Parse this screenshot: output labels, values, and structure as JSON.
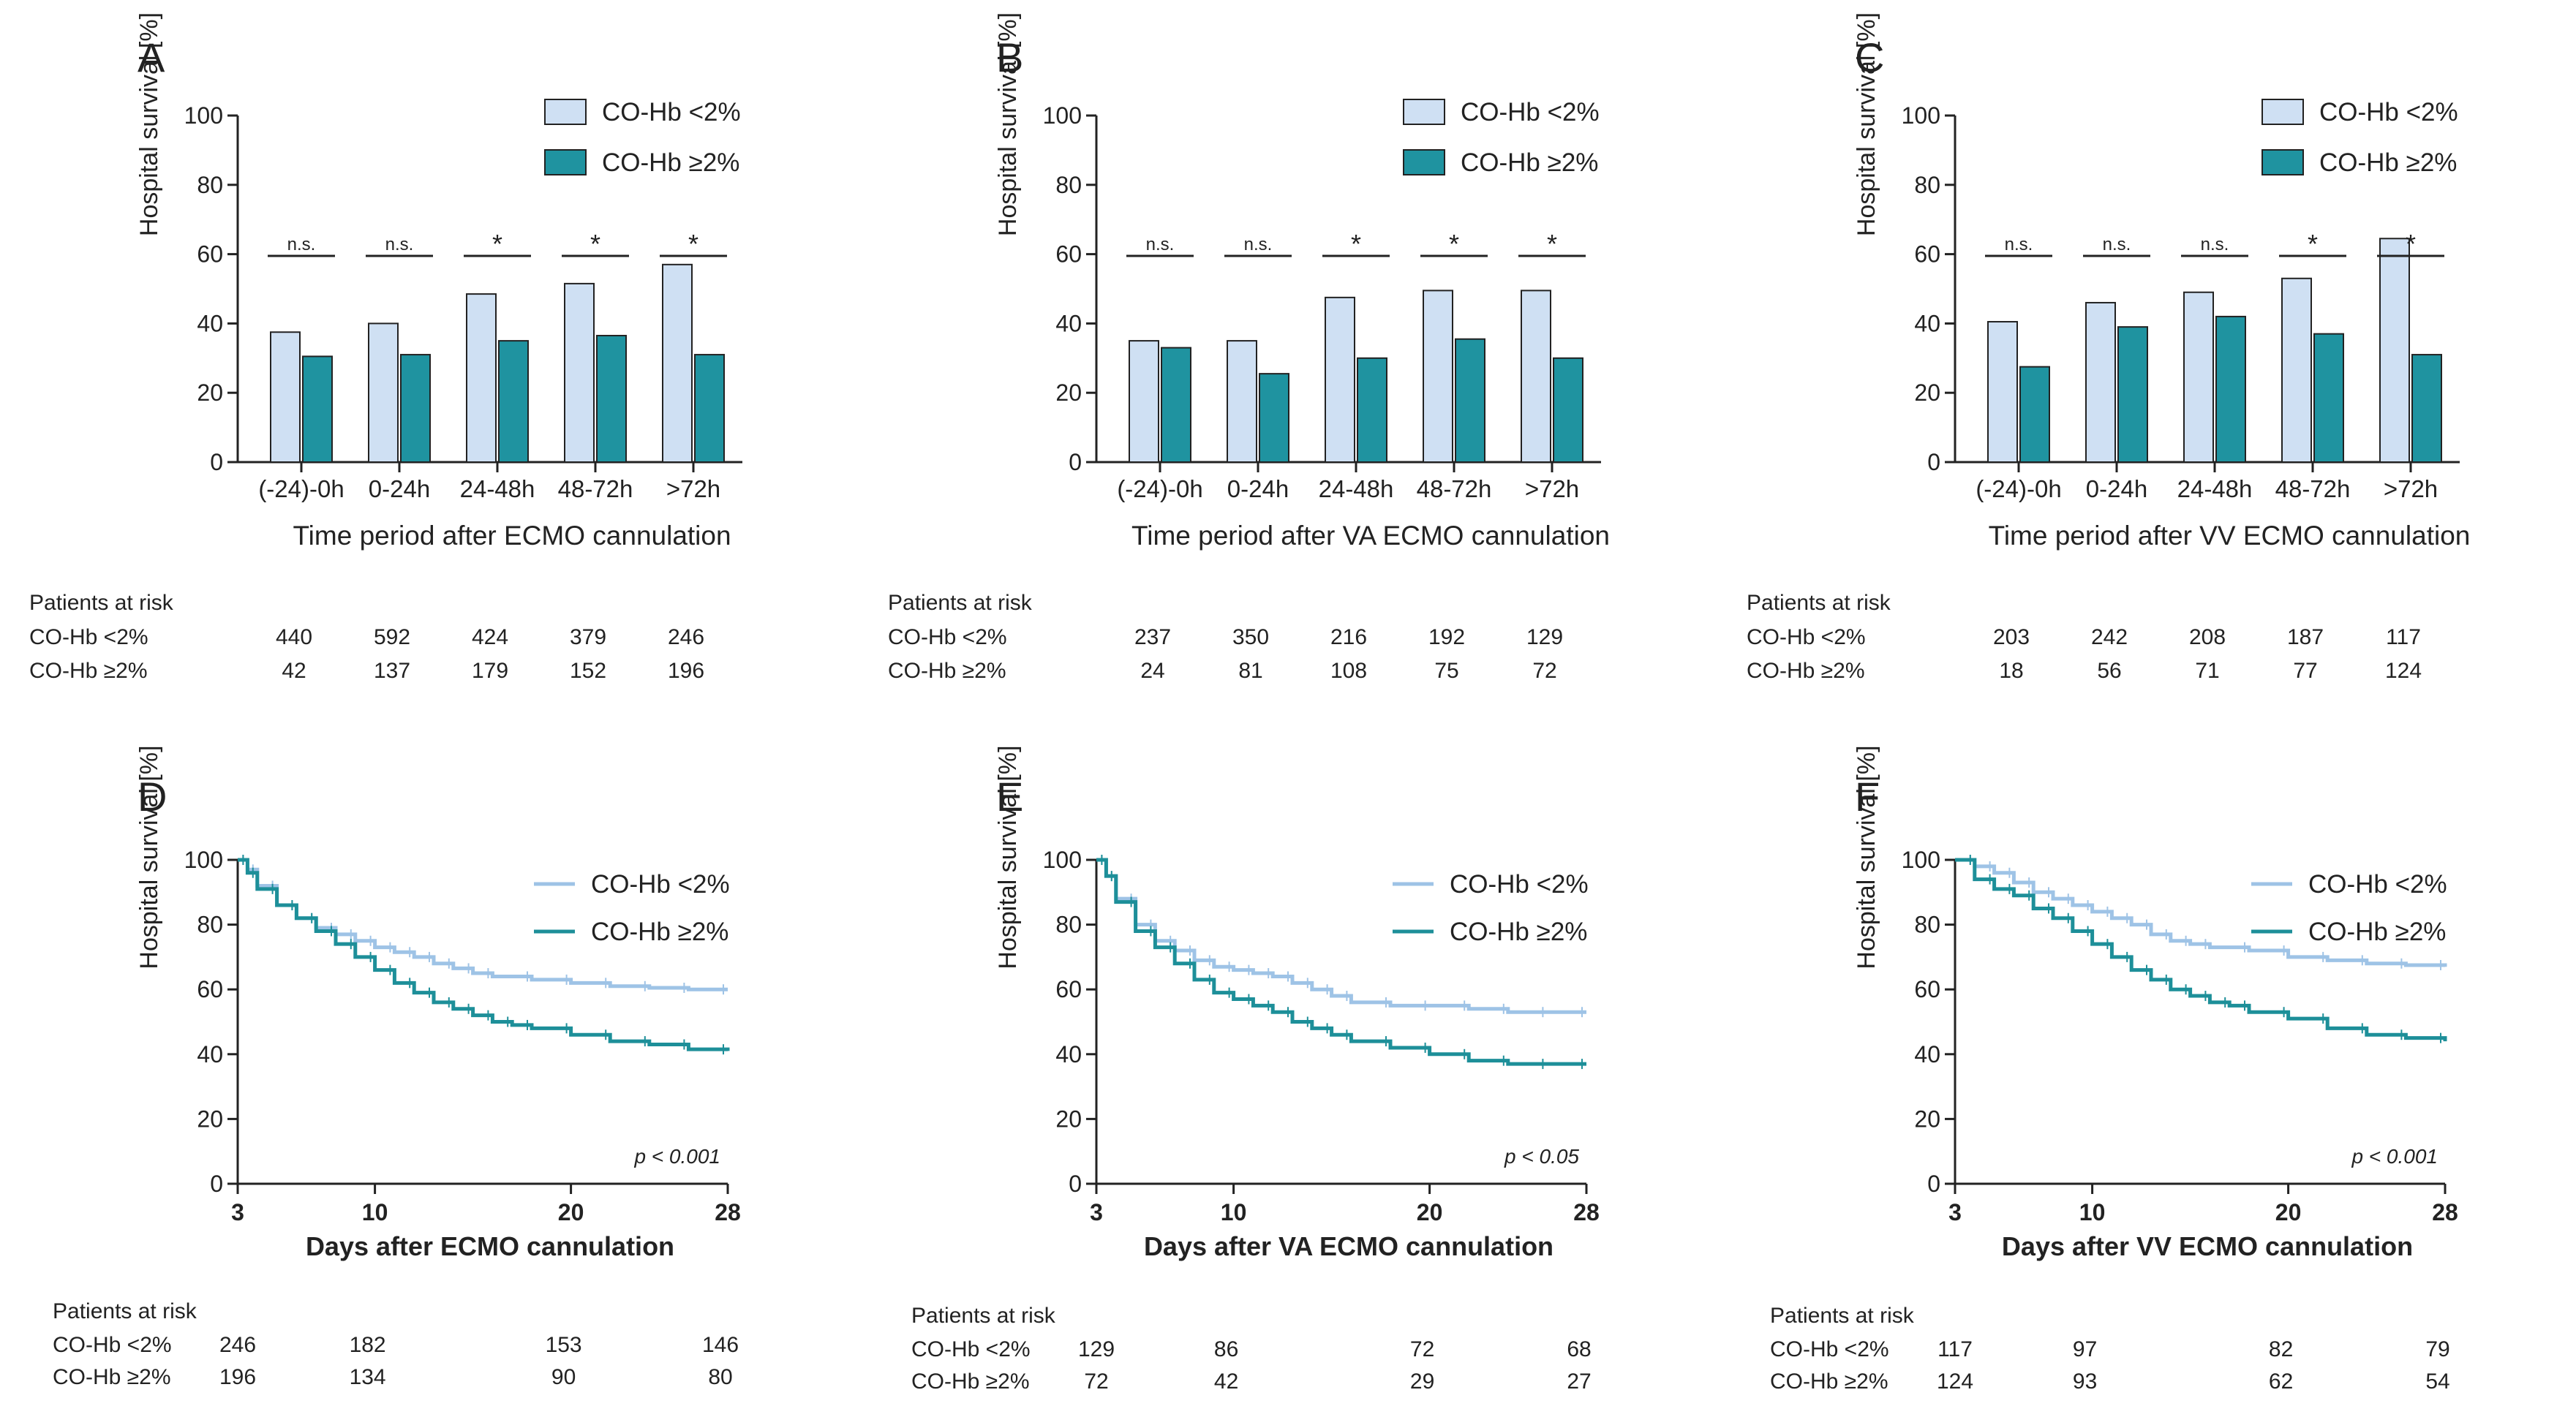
{
  "colors": {
    "light": "#cfe0f3",
    "dark": "#1f93a0",
    "km_light": "#9ec3e6",
    "km_dark": "#1d8f99",
    "axis": "#222222"
  },
  "legend_labels": {
    "low": "CO-Hb <2%",
    "high": "CO-Hb ≥2%"
  },
  "risk_header": "Patients at risk",
  "chart_data": [
    {
      "panel": "A",
      "type": "bar",
      "ylabel": "Hospital survival [%]",
      "xlabel": "Time period after ECMO cannulation",
      "ylim": [
        0,
        100
      ],
      "yticks": [
        "0",
        "20",
        "40",
        "60",
        "80",
        "100"
      ],
      "categories": [
        "(-24)-0h",
        "0-24h",
        "24-48h",
        "48-72h",
        ">72h"
      ],
      "series": [
        {
          "name": "CO-Hb <2%",
          "values": [
            37.5,
            40,
            48.5,
            51.5,
            57
          ]
        },
        {
          "name": "CO-Hb ≥2%",
          "values": [
            30.5,
            31,
            35,
            36.5,
            31
          ]
        }
      ],
      "significance": [
        "n.s.",
        "n.s.",
        "*",
        "*",
        "*"
      ],
      "at_risk": {
        "rows": [
          {
            "label": "CO-Hb <2%",
            "values": [
              "440",
              "592",
              "424",
              "379",
              "246"
            ]
          },
          {
            "label": "CO-Hb ≥2%",
            "values": [
              "42",
              "137",
              "179",
              "152",
              "196"
            ]
          }
        ]
      }
    },
    {
      "panel": "B",
      "type": "bar",
      "ylabel": "Hospital survival [%]",
      "xlabel": "Time period after  VA ECMO cannulation",
      "ylim": [
        0,
        100
      ],
      "yticks": [
        "0",
        "20",
        "40",
        "60",
        "80",
        "100"
      ],
      "categories": [
        "(-24)-0h",
        "0-24h",
        "24-48h",
        "48-72h",
        ">72h"
      ],
      "series": [
        {
          "name": "CO-Hb <2%",
          "values": [
            35,
            35,
            47.5,
            49.5,
            49.5
          ]
        },
        {
          "name": "CO-Hb ≥2%",
          "values": [
            33,
            25.5,
            30,
            35.5,
            30
          ]
        }
      ],
      "significance": [
        "n.s.",
        "n.s.",
        "*",
        "*",
        "*"
      ],
      "at_risk": {
        "rows": [
          {
            "label": "CO-Hb <2%",
            "values": [
              "237",
              "350",
              "216",
              "192",
              "129"
            ]
          },
          {
            "label": "CO-Hb ≥2%",
            "values": [
              "24",
              "81",
              "108",
              "75",
              "72"
            ]
          }
        ]
      }
    },
    {
      "panel": "C",
      "type": "bar",
      "ylabel": "Hospital survival [%]",
      "xlabel": "Time period after VV ECMO cannulation",
      "ylim": [
        0,
        100
      ],
      "yticks": [
        "0",
        "20",
        "40",
        "60",
        "80",
        "100"
      ],
      "categories": [
        "(-24)-0h",
        "0-24h",
        "24-48h",
        "48-72h",
        ">72h"
      ],
      "series": [
        {
          "name": "CO-Hb <2%",
          "values": [
            40.5,
            46,
            49,
            53,
            64.5
          ]
        },
        {
          "name": "CO-Hb ≥2%",
          "values": [
            27.5,
            39,
            42,
            37,
            31
          ]
        }
      ],
      "significance": [
        "n.s.",
        "n.s.",
        "n.s.",
        "*",
        "*"
      ],
      "at_risk": {
        "rows": [
          {
            "label": "CO-Hb <2%",
            "values": [
              "203",
              "242",
              "208",
              "187",
              "117"
            ]
          },
          {
            "label": "CO-Hb ≥2%",
            "values": [
              "18",
              "56",
              "71",
              "77",
              "124"
            ]
          }
        ]
      }
    },
    {
      "panel": "D",
      "type": "line",
      "ylabel": "Hospital survival [%]",
      "xlabel": "Days after ECMO cannulation",
      "xlim": [
        3,
        28
      ],
      "ylim": [
        0,
        100
      ],
      "xticks": [
        "3",
        "10",
        "20",
        "28"
      ],
      "yticks": [
        "0",
        "20",
        "40",
        "60",
        "80",
        "100"
      ],
      "pvalue": "p < 0.001",
      "series": [
        {
          "name": "CO-Hb <2%",
          "x": [
            3,
            3.5,
            4,
            5,
            6,
            7,
            8,
            9,
            10,
            11,
            12,
            13,
            14,
            15,
            16,
            18,
            20,
            22,
            24,
            26,
            28
          ],
          "y": [
            100,
            97,
            92,
            86,
            82,
            79,
            77,
            75,
            73,
            71.5,
            70,
            68,
            66.5,
            65,
            64,
            63,
            62,
            61,
            60.5,
            60,
            60
          ]
        },
        {
          "name": "CO-Hb ≥2%",
          "x": [
            3,
            3.5,
            4,
            5,
            6,
            7,
            8,
            9,
            10,
            11,
            12,
            13,
            14,
            15,
            16,
            17,
            18,
            20,
            22,
            24,
            26,
            28
          ],
          "y": [
            100,
            96,
            91,
            86,
            82,
            78,
            74,
            70,
            66,
            62,
            59,
            56,
            54,
            52,
            50,
            49,
            48,
            46,
            44,
            43,
            41.5,
            41
          ]
        }
      ],
      "at_risk": {
        "x": [
          3,
          10,
          20,
          28
        ],
        "rows": [
          {
            "label": "CO-Hb <2%",
            "values": [
              "246",
              "182",
              "153",
              "146"
            ]
          },
          {
            "label": "CO-Hb ≥2%",
            "values": [
              "196",
              "134",
              "90",
              "80"
            ]
          }
        ]
      }
    },
    {
      "panel": "E",
      "type": "line",
      "ylabel": "Hospital survival [%]",
      "xlabel": "Days after VA ECMO cannulation",
      "xlim": [
        3,
        28
      ],
      "ylim": [
        0,
        100
      ],
      "xticks": [
        "3",
        "10",
        "20",
        "28"
      ],
      "yticks": [
        "0",
        "20",
        "40",
        "60",
        "80",
        "100"
      ],
      "pvalue": "p < 0.05",
      "series": [
        {
          "name": "CO-Hb <2%",
          "x": [
            3,
            3.5,
            4,
            5,
            6,
            7,
            8,
            9,
            10,
            11,
            12,
            13,
            14,
            15,
            16,
            18,
            20,
            22,
            24,
            26,
            28
          ],
          "y": [
            100,
            95,
            88,
            80,
            75,
            72,
            69,
            67,
            66,
            65,
            64,
            62,
            60,
            58,
            56,
            55,
            55,
            54,
            53,
            53,
            53
          ]
        },
        {
          "name": "CO-Hb ≥2%",
          "x": [
            3,
            3.5,
            4,
            5,
            6,
            7,
            8,
            9,
            10,
            11,
            12,
            13,
            14,
            15,
            16,
            18,
            20,
            22,
            24,
            26,
            28
          ],
          "y": [
            100,
            95,
            87,
            78,
            73,
            68,
            63,
            59,
            57,
            55,
            53,
            50,
            48,
            46,
            44,
            42,
            40,
            38,
            37,
            37,
            37
          ]
        }
      ],
      "at_risk": {
        "x": [
          3,
          10,
          20,
          28
        ],
        "rows": [
          {
            "label": "CO-Hb <2%",
            "values": [
              "129",
              "86",
              "72",
              "68"
            ]
          },
          {
            "label": "CO-Hb ≥2%",
            "values": [
              "72",
              "42",
              "29",
              "27"
            ]
          }
        ]
      }
    },
    {
      "panel": "F",
      "type": "line",
      "ylabel": "Hospital survival [%]",
      "xlabel": "Days after VV ECMO cannulation",
      "xlim": [
        3,
        28
      ],
      "ylim": [
        0,
        100
      ],
      "xticks": [
        "3",
        "10",
        "20",
        "28"
      ],
      "yticks": [
        "0",
        "20",
        "40",
        "60",
        "80",
        "100"
      ],
      "pvalue": "p < 0.001",
      "series": [
        {
          "name": "CO-Hb <2%",
          "x": [
            3,
            4,
            5,
            6,
            7,
            8,
            9,
            10,
            11,
            12,
            13,
            14,
            15,
            16,
            18,
            20,
            22,
            24,
            26,
            28
          ],
          "y": [
            100,
            98,
            96,
            93,
            90,
            88,
            86,
            84,
            82,
            80,
            77,
            75,
            74,
            73,
            72,
            70,
            69,
            68,
            67.5,
            67
          ]
        },
        {
          "name": "CO-Hb ≥2%",
          "x": [
            3,
            4,
            5,
            6,
            7,
            8,
            9,
            10,
            11,
            12,
            13,
            14,
            15,
            16,
            17,
            18,
            20,
            22,
            24,
            26,
            28
          ],
          "y": [
            100,
            94,
            91,
            89,
            85,
            82,
            78,
            74,
            70,
            66,
            63,
            60,
            58,
            56,
            55,
            53,
            51,
            48,
            46,
            45,
            44
          ]
        }
      ],
      "at_risk": {
        "x": [
          3,
          10,
          20,
          28
        ],
        "rows": [
          {
            "label": "CO-Hb <2%",
            "values": [
              "117",
              "97",
              "82",
              "79"
            ]
          },
          {
            "label": "CO-Hb ≥2%",
            "values": [
              "124",
              "93",
              "62",
              "54"
            ]
          }
        ]
      }
    }
  ]
}
